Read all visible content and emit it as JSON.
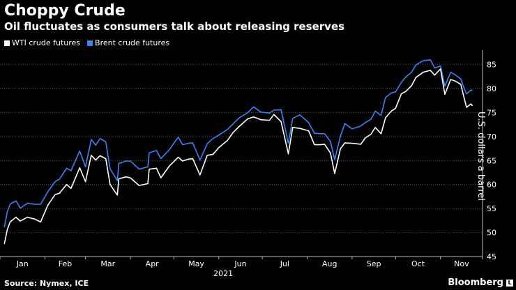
{
  "header": {
    "title": "Choppy Crude",
    "subtitle": "Oil fluctuates as consumers talk about releasing reserves"
  },
  "legend": [
    {
      "label": "WTI crude futures",
      "color": "#ffffff"
    },
    {
      "label": "Brent crude futures",
      "color": "#3b82f6"
    }
  ],
  "footer": {
    "source": "Source: Nymex, ICE",
    "brand": "Bloomberg",
    "brand_badge": "L"
  },
  "chart_data": {
    "type": "line",
    "title": "Choppy Crude",
    "subtitle": "Oil fluctuates as consumers talk about releasing reserves",
    "ylabel": "U.S. dollars a barrel",
    "year_label": "2021",
    "xlabel_months": [
      "Jan",
      "Feb",
      "Mar",
      "Apr",
      "May",
      "Jun",
      "Jul",
      "Aug",
      "Sep",
      "Oct",
      "Nov"
    ],
    "x_range": [
      "2021-01-01",
      "2021-11-30"
    ],
    "ylim": [
      45,
      88
    ],
    "yticks": [
      45,
      50,
      55,
      60,
      65,
      70,
      75,
      80,
      85
    ],
    "grid": "horizontal dotted",
    "axis_side": "right",
    "series": [
      {
        "name": "WTI crude futures",
        "color": "#ffffff",
        "points": [
          [
            "2021-01-04",
            47.6
          ],
          [
            "2021-01-06",
            50.6
          ],
          [
            "2021-01-08",
            52.2
          ],
          [
            "2021-01-12",
            53.2
          ],
          [
            "2021-01-15",
            52.4
          ],
          [
            "2021-01-20",
            53.2
          ],
          [
            "2021-01-25",
            52.8
          ],
          [
            "2021-01-29",
            52.2
          ],
          [
            "2021-02-03",
            55.7
          ],
          [
            "2021-02-08",
            57.9
          ],
          [
            "2021-02-11",
            58.2
          ],
          [
            "2021-02-16",
            60.0
          ],
          [
            "2021-02-19",
            59.2
          ],
          [
            "2021-02-25",
            63.5
          ],
          [
            "2021-03-01",
            60.6
          ],
          [
            "2021-03-05",
            66.1
          ],
          [
            "2021-03-08",
            65.1
          ],
          [
            "2021-03-11",
            66.0
          ],
          [
            "2021-03-15",
            65.4
          ],
          [
            "2021-03-18",
            60.0
          ],
          [
            "2021-03-23",
            57.8
          ],
          [
            "2021-03-24",
            61.2
          ],
          [
            "2021-03-29",
            61.6
          ],
          [
            "2021-04-01",
            61.4
          ],
          [
            "2021-04-07",
            59.8
          ],
          [
            "2021-04-13",
            60.2
          ],
          [
            "2021-04-14",
            63.2
          ],
          [
            "2021-04-19",
            63.4
          ],
          [
            "2021-04-22",
            61.4
          ],
          [
            "2021-04-28",
            63.9
          ],
          [
            "2021-05-04",
            65.7
          ],
          [
            "2021-05-07",
            64.9
          ],
          [
            "2021-05-11",
            65.3
          ],
          [
            "2021-05-14",
            65.4
          ],
          [
            "2021-05-19",
            62.0
          ],
          [
            "2021-05-24",
            66.1
          ],
          [
            "2021-05-28",
            66.3
          ],
          [
            "2021-06-01",
            67.7
          ],
          [
            "2021-06-07",
            69.2
          ],
          [
            "2021-06-11",
            70.9
          ],
          [
            "2021-06-15",
            72.1
          ],
          [
            "2021-06-21",
            73.7
          ],
          [
            "2021-06-25",
            74.1
          ],
          [
            "2021-06-30",
            73.5
          ],
          [
            "2021-07-06",
            73.4
          ],
          [
            "2021-07-09",
            74.6
          ],
          [
            "2021-07-14",
            73.1
          ],
          [
            "2021-07-19",
            66.4
          ],
          [
            "2021-07-22",
            71.9
          ],
          [
            "2021-07-27",
            71.7
          ],
          [
            "2021-08-02",
            71.2
          ],
          [
            "2021-08-06",
            68.3
          ],
          [
            "2021-08-10",
            68.3
          ],
          [
            "2021-08-13",
            68.4
          ],
          [
            "2021-08-17",
            66.6
          ],
          [
            "2021-08-20",
            62.3
          ],
          [
            "2021-08-24",
            67.5
          ],
          [
            "2021-08-27",
            68.7
          ],
          [
            "2021-09-01",
            68.6
          ],
          [
            "2021-09-07",
            68.4
          ],
          [
            "2021-09-10",
            69.7
          ],
          [
            "2021-09-14",
            70.5
          ],
          [
            "2021-09-17",
            71.9
          ],
          [
            "2021-09-21",
            70.6
          ],
          [
            "2021-09-24",
            73.9
          ],
          [
            "2021-09-28",
            75.3
          ],
          [
            "2021-10-01",
            75.9
          ],
          [
            "2021-10-05",
            78.9
          ],
          [
            "2021-10-08",
            79.4
          ],
          [
            "2021-10-12",
            80.6
          ],
          [
            "2021-10-15",
            82.3
          ],
          [
            "2021-10-20",
            83.4
          ],
          [
            "2021-10-25",
            83.8
          ],
          [
            "2021-10-28",
            82.8
          ],
          [
            "2021-11-01",
            84.1
          ],
          [
            "2021-11-04",
            78.8
          ],
          [
            "2021-11-08",
            81.9
          ],
          [
            "2021-11-11",
            81.6
          ],
          [
            "2021-11-15",
            80.9
          ],
          [
            "2021-11-17",
            78.4
          ],
          [
            "2021-11-19",
            76.1
          ],
          [
            "2021-11-22",
            76.8
          ],
          [
            "2021-11-23",
            76.4
          ]
        ]
      },
      {
        "name": "Brent crude futures",
        "color": "#3b82f6",
        "points": [
          [
            "2021-01-04",
            51.1
          ],
          [
            "2021-01-06",
            54.3
          ],
          [
            "2021-01-08",
            55.9
          ],
          [
            "2021-01-12",
            56.6
          ],
          [
            "2021-01-15",
            55.1
          ],
          [
            "2021-01-20",
            56.1
          ],
          [
            "2021-01-25",
            55.9
          ],
          [
            "2021-01-29",
            55.9
          ],
          [
            "2021-02-03",
            58.5
          ],
          [
            "2021-02-08",
            60.6
          ],
          [
            "2021-02-11",
            61.1
          ],
          [
            "2021-02-16",
            63.4
          ],
          [
            "2021-02-19",
            62.9
          ],
          [
            "2021-02-25",
            67.0
          ],
          [
            "2021-03-01",
            63.7
          ],
          [
            "2021-03-05",
            69.4
          ],
          [
            "2021-03-08",
            68.2
          ],
          [
            "2021-03-11",
            69.6
          ],
          [
            "2021-03-15",
            68.9
          ],
          [
            "2021-03-18",
            63.3
          ],
          [
            "2021-03-23",
            60.8
          ],
          [
            "2021-03-24",
            64.4
          ],
          [
            "2021-03-29",
            64.9
          ],
          [
            "2021-04-01",
            64.9
          ],
          [
            "2021-04-07",
            63.2
          ],
          [
            "2021-04-13",
            63.7
          ],
          [
            "2021-04-14",
            66.6
          ],
          [
            "2021-04-19",
            67.1
          ],
          [
            "2021-04-22",
            65.4
          ],
          [
            "2021-04-28",
            67.3
          ],
          [
            "2021-05-04",
            69.9
          ],
          [
            "2021-05-07",
            68.3
          ],
          [
            "2021-05-11",
            68.6
          ],
          [
            "2021-05-14",
            68.7
          ],
          [
            "2021-05-19",
            65.1
          ],
          [
            "2021-05-24",
            68.5
          ],
          [
            "2021-05-28",
            69.6
          ],
          [
            "2021-06-01",
            70.3
          ],
          [
            "2021-06-07",
            71.5
          ],
          [
            "2021-06-11",
            72.7
          ],
          [
            "2021-06-15",
            73.9
          ],
          [
            "2021-06-21",
            75.0
          ],
          [
            "2021-06-25",
            76.2
          ],
          [
            "2021-06-30",
            75.1
          ],
          [
            "2021-07-06",
            74.9
          ],
          [
            "2021-07-09",
            75.5
          ],
          [
            "2021-07-14",
            75.6
          ],
          [
            "2021-07-19",
            68.6
          ],
          [
            "2021-07-22",
            73.8
          ],
          [
            "2021-07-27",
            74.5
          ],
          [
            "2021-08-02",
            72.9
          ],
          [
            "2021-08-06",
            70.7
          ],
          [
            "2021-08-10",
            70.6
          ],
          [
            "2021-08-13",
            70.6
          ],
          [
            "2021-08-17",
            69.0
          ],
          [
            "2021-08-20",
            65.2
          ],
          [
            "2021-08-24",
            70.1
          ],
          [
            "2021-08-27",
            72.7
          ],
          [
            "2021-09-01",
            71.6
          ],
          [
            "2021-09-07",
            72.2
          ],
          [
            "2021-09-10",
            72.9
          ],
          [
            "2021-09-14",
            73.6
          ],
          [
            "2021-09-17",
            75.3
          ],
          [
            "2021-09-21",
            74.4
          ],
          [
            "2021-09-24",
            78.1
          ],
          [
            "2021-09-28",
            79.1
          ],
          [
            "2021-10-01",
            79.3
          ],
          [
            "2021-10-05",
            81.3
          ],
          [
            "2021-10-08",
            82.4
          ],
          [
            "2021-10-12",
            83.4
          ],
          [
            "2021-10-15",
            84.9
          ],
          [
            "2021-10-20",
            85.8
          ],
          [
            "2021-10-25",
            86.0
          ],
          [
            "2021-10-28",
            84.3
          ],
          [
            "2021-11-01",
            84.7
          ],
          [
            "2021-11-04",
            80.5
          ],
          [
            "2021-11-08",
            83.4
          ],
          [
            "2021-11-11",
            82.9
          ],
          [
            "2021-11-15",
            82.0
          ],
          [
            "2021-11-17",
            80.3
          ],
          [
            "2021-11-19",
            78.9
          ],
          [
            "2021-11-22",
            79.7
          ],
          [
            "2021-11-23",
            79.6
          ]
        ]
      }
    ]
  }
}
